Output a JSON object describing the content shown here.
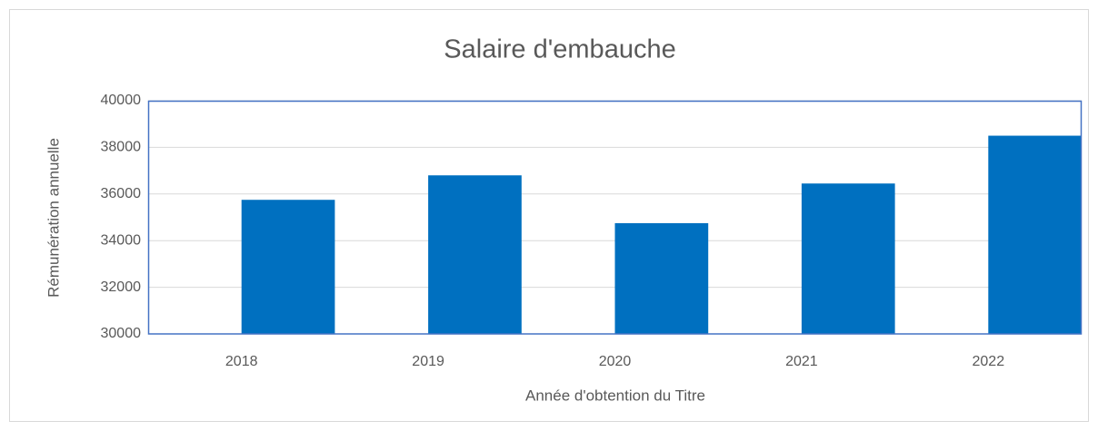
{
  "chart_data": {
    "type": "bar",
    "title": "Salaire d'embauche",
    "x_label": "Année d'obtention du Titre",
    "y_label": "Rémunération  annuelle",
    "categories": [
      "2018",
      "2019",
      "2020",
      "2021",
      "2022"
    ],
    "values": [
      35750,
      36800,
      34750,
      36450,
      38500
    ],
    "color": "#0070c0",
    "ylim": [
      30000,
      40000
    ],
    "yticks": [
      30000,
      32000,
      34000,
      36000,
      38000,
      40000
    ],
    "grid": true
  }
}
